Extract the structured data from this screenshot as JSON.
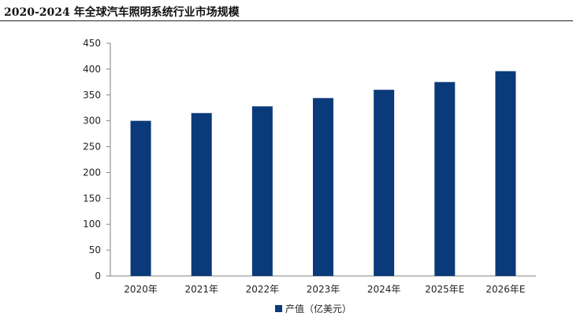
{
  "header": {
    "title": "2020-2024 年全球汽车照明系统行业市场规模"
  },
  "colors": {
    "bar": "#0b3a7a",
    "axis": "#808080",
    "text": "#222222"
  },
  "chart_data": {
    "type": "bar",
    "title": "",
    "xlabel": "",
    "ylabel": "",
    "categories": [
      "2020年",
      "2021年",
      "2022年",
      "2023年",
      "2024年",
      "2025年E",
      "2026年E"
    ],
    "series": [
      {
        "name": "产值（亿美元）",
        "values": [
          300,
          315,
          328,
          344,
          360,
          375,
          396
        ]
      }
    ],
    "ylim": [
      0,
      450
    ],
    "yticks": [
      "0",
      "50",
      "100",
      "150",
      "200",
      "250",
      "300",
      "350",
      "400",
      "450"
    ],
    "grid": false,
    "legend_position": "bottom"
  }
}
